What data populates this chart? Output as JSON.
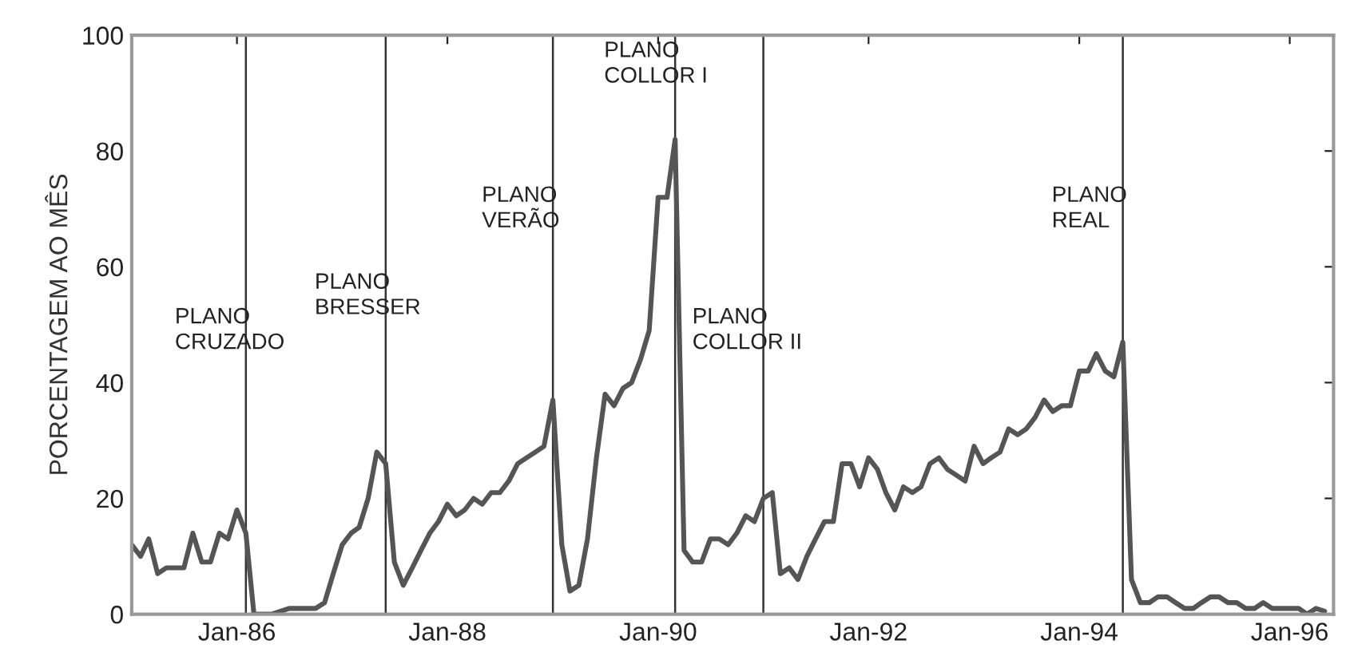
{
  "chart_data": {
    "type": "line",
    "ylabel": "PORCENTAGEM AO MÊS",
    "x": [
      "1985-01",
      "1985-02",
      "1985-03",
      "1985-04",
      "1985-05",
      "1985-06",
      "1985-07",
      "1985-08",
      "1985-09",
      "1985-10",
      "1985-11",
      "1985-12",
      "1986-01",
      "1986-02",
      "1986-03",
      "1986-04",
      "1986-05",
      "1986-06",
      "1986-07",
      "1986-08",
      "1986-09",
      "1986-10",
      "1986-11",
      "1986-12",
      "1987-01",
      "1987-02",
      "1987-03",
      "1987-04",
      "1987-05",
      "1987-06",
      "1987-07",
      "1987-08",
      "1987-09",
      "1987-10",
      "1987-11",
      "1987-12",
      "1988-01",
      "1988-02",
      "1988-03",
      "1988-04",
      "1988-05",
      "1988-06",
      "1988-07",
      "1988-08",
      "1988-09",
      "1988-10",
      "1988-11",
      "1988-12",
      "1989-01",
      "1989-02",
      "1989-03",
      "1989-04",
      "1989-05",
      "1989-06",
      "1989-07",
      "1989-08",
      "1989-09",
      "1989-10",
      "1989-11",
      "1989-12",
      "1990-01",
      "1990-02",
      "1990-03",
      "1990-04",
      "1990-05",
      "1990-06",
      "1990-07",
      "1990-08",
      "1990-09",
      "1990-10",
      "1990-11",
      "1990-12",
      "1991-01",
      "1991-02",
      "1991-03",
      "1991-04",
      "1991-05",
      "1991-06",
      "1991-07",
      "1991-08",
      "1991-09",
      "1991-10",
      "1991-11",
      "1991-12",
      "1992-01",
      "1992-02",
      "1992-03",
      "1992-04",
      "1992-05",
      "1992-06",
      "1992-07",
      "1992-08",
      "1992-09",
      "1992-10",
      "1992-11",
      "1992-12",
      "1993-01",
      "1993-02",
      "1993-03",
      "1993-04",
      "1993-05",
      "1993-06",
      "1993-07",
      "1993-08",
      "1993-09",
      "1993-10",
      "1993-11",
      "1993-12",
      "1994-01",
      "1994-02",
      "1994-03",
      "1994-04",
      "1994-05",
      "1994-06",
      "1994-07",
      "1994-08",
      "1994-09",
      "1994-10",
      "1994-11",
      "1994-12",
      "1995-01",
      "1995-02",
      "1995-03",
      "1995-04",
      "1995-05",
      "1995-06",
      "1995-07",
      "1995-08",
      "1995-09",
      "1995-10",
      "1995-11",
      "1995-12",
      "1996-01",
      "1996-02",
      "1996-03",
      "1996-04",
      "1996-05"
    ],
    "series": [
      {
        "color": "#555555",
        "values": [
          12,
          10,
          13,
          7,
          8,
          8,
          8,
          14,
          9,
          9,
          14,
          13,
          18,
          14,
          0,
          0,
          0,
          0.5,
          1,
          1,
          1,
          1,
          2,
          7,
          12,
          14,
          15,
          20,
          28,
          26,
          9,
          5,
          8,
          11,
          14,
          16,
          19,
          17,
          18,
          20,
          19,
          21,
          21,
          23,
          26,
          27,
          28,
          29,
          37,
          12,
          4,
          5,
          13,
          27,
          38,
          36,
          39,
          40,
          44,
          49,
          72,
          72,
          82,
          11,
          9,
          9,
          13,
          13,
          12,
          14,
          17,
          16,
          20,
          21,
          7,
          8,
          6,
          10,
          13,
          16,
          16,
          26,
          26,
          22,
          27,
          25,
          21,
          18,
          22,
          21,
          22,
          26,
          27,
          25,
          24,
          23,
          29,
          26,
          27,
          28,
          32,
          31,
          32,
          34,
          37,
          35,
          36,
          36,
          42,
          42,
          45,
          42,
          41,
          47,
          6,
          2,
          2,
          3,
          3,
          2,
          1,
          1,
          2,
          3,
          3,
          2,
          2,
          1,
          1,
          2,
          1,
          1,
          1,
          1,
          0,
          1,
          0.5
        ]
      }
    ],
    "ylim": [
      0,
      100
    ],
    "yticks": [
      0,
      20,
      40,
      60,
      80,
      100
    ],
    "xlim": [
      "1985-01",
      "1996-06"
    ],
    "xticks": [
      {
        "value": "1986-01",
        "label": "Jan-86"
      },
      {
        "value": "1988-01",
        "label": "Jan-88"
      },
      {
        "value": "1990-01",
        "label": "Jan-90"
      },
      {
        "value": "1992-01",
        "label": "Jan-92"
      },
      {
        "value": "1994-01",
        "label": "Jan-94"
      },
      {
        "value": "1996-01",
        "label": "Jan-96"
      }
    ],
    "ref_lines": [
      {
        "axis": "x",
        "value": "1986-02",
        "color": "#333333"
      },
      {
        "axis": "x",
        "value": "1987-06",
        "color": "#333333"
      },
      {
        "axis": "x",
        "value": "1989-01",
        "color": "#333333"
      },
      {
        "axis": "x",
        "value": "1990-03",
        "color": "#333333"
      },
      {
        "axis": "x",
        "value": "1991-01",
        "color": "#333333"
      },
      {
        "axis": "x",
        "value": "1994-06",
        "color": "#333333"
      }
    ],
    "annotations": [
      {
        "text": "PLANO\nCRUZADO",
        "x": "1986-02",
        "y": 53
      },
      {
        "text": "PLANO\nBRESSER",
        "x": "1987-06",
        "y": 59
      },
      {
        "text": "PLANO\nVERÃO",
        "x": "1989-01",
        "y": 74
      },
      {
        "text": "PLANO\nCOLLOR I",
        "x": "1990-03",
        "y": 99
      },
      {
        "text": "PLANO\nCOLLOR II",
        "x": "1991-01",
        "y": 53
      },
      {
        "text": "PLANO\nREAL",
        "x": "1994-06",
        "y": 74
      }
    ],
    "grid": false,
    "legend": false,
    "marker": "none",
    "line_style": "solid"
  }
}
